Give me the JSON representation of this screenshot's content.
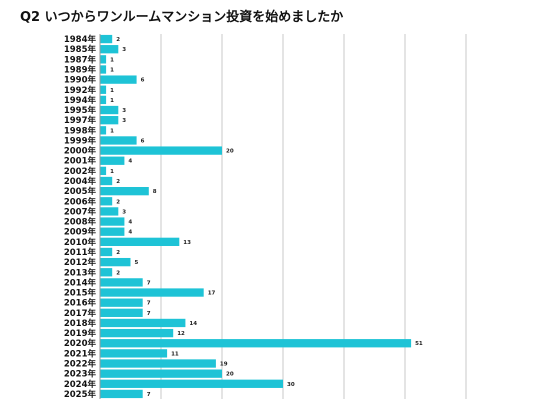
{
  "chart_data": {
    "type": "bar",
    "orientation": "horizontal",
    "title": "Q2 いつからワンルームマンション投資を始めましたか",
    "xlabel": "",
    "ylabel": "",
    "categories": [
      "1984年",
      "1985年",
      "1987年",
      "1989年",
      "1990年",
      "1992年",
      "1994年",
      "1995年",
      "1997年",
      "1998年",
      "1999年",
      "2000年",
      "2001年",
      "2002年",
      "2004年",
      "2005年",
      "2006年",
      "2007年",
      "2008年",
      "2009年",
      "2010年",
      "2011年",
      "2012年",
      "2013年",
      "2014年",
      "2015年",
      "2016年",
      "2017年",
      "2018年",
      "2019年",
      "2020年",
      "2021年",
      "2022年",
      "2023年",
      "2024年",
      "2025年"
    ],
    "series": [
      {
        "values": [
          2,
          3,
          1,
          1,
          6,
          1,
          1,
          3,
          3,
          1,
          6,
          20,
          4,
          1,
          2,
          8,
          2,
          3,
          4,
          4,
          13,
          2,
          5,
          2,
          7,
          17,
          7,
          7,
          14,
          12,
          51,
          11,
          19,
          20,
          30,
          7
        ]
      }
    ],
    "xlim": [
      0,
      60
    ],
    "grid": true,
    "legend": "none",
    "colors": {
      "bar": "#1ec3d6",
      "grid": "#c9c9c9",
      "axis": "#9a9a9a"
    }
  }
}
